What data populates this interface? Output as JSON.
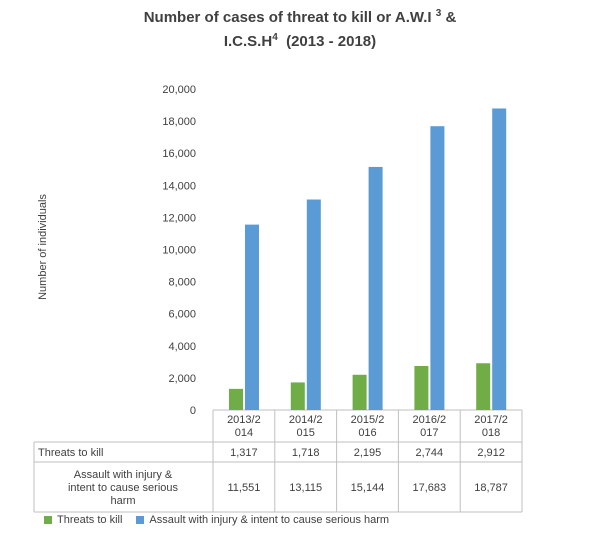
{
  "chart_data": {
    "type": "bar",
    "title_line1": "Number of cases of threat to kill or A.W.I",
    "title_sup1": "3",
    "title_amp": " &",
    "title_line2_a": "I.C.S.H",
    "title_sup2": "4",
    "title_line2_b": "  (2013 - 2018)",
    "ylabel": "Number of individuals",
    "ylim": [
      0,
      20000
    ],
    "yticks": [
      "0",
      "2,000",
      "4,000",
      "6,000",
      "8,000",
      "10,000",
      "12,000",
      "14,000",
      "16,000",
      "18,000",
      "20,000"
    ],
    "categories": [
      [
        "2013/2",
        "014"
      ],
      [
        "2014/2",
        "015"
      ],
      [
        "2015/2",
        "016"
      ],
      [
        "2016/2",
        "017"
      ],
      [
        "2017/2",
        "018"
      ]
    ],
    "series": [
      {
        "name": "Threats to kill",
        "table_label": [
          "Threats to kill"
        ],
        "values": [
          1317,
          1718,
          2195,
          2744,
          2912
        ],
        "labels": [
          "1,317",
          "1,718",
          "2,195",
          "2,744",
          "2,912"
        ],
        "color": "#70ad47"
      },
      {
        "name": "Assault with injury & intent to cause serious harm",
        "table_label": [
          "Assault with injury &",
          "intent to cause serious",
          "harm"
        ],
        "values": [
          11551,
          13115,
          15144,
          17683,
          18787
        ],
        "labels": [
          "11,551",
          "13,115",
          "15,144",
          "17,683",
          "18,787"
        ],
        "color": "#5b9bd5"
      }
    ],
    "grid": false,
    "legend": "bottom"
  }
}
